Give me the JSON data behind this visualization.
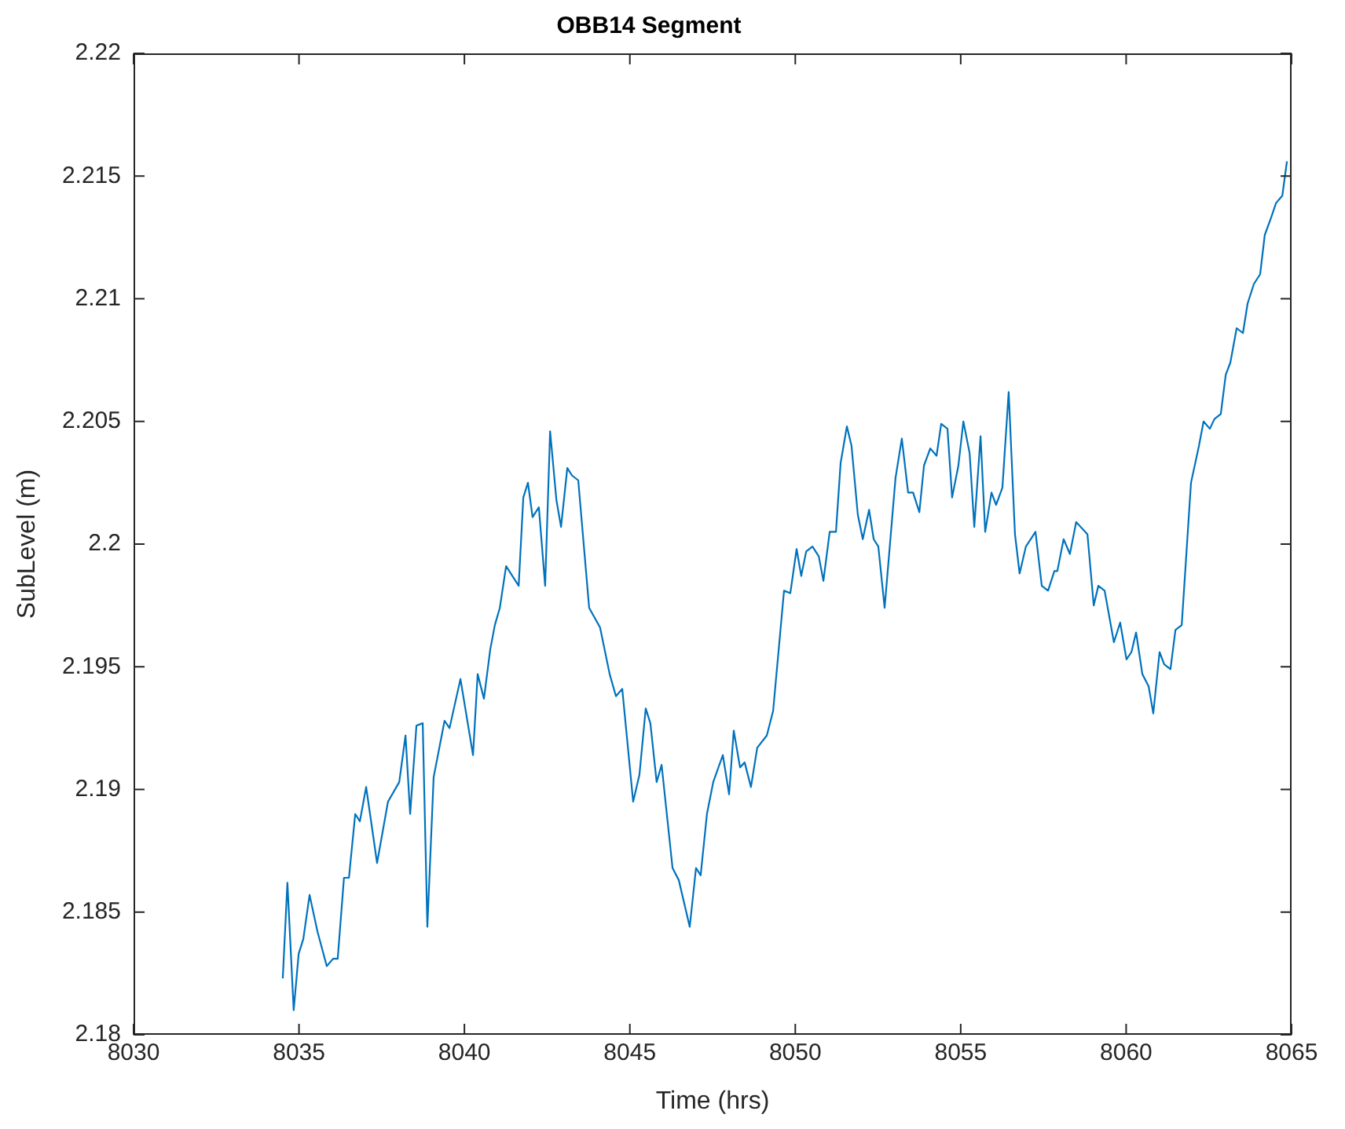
{
  "chart_data": {
    "type": "line",
    "title": "OBB14 Segment",
    "xlabel": "Time (hrs)",
    "ylabel": "SubLevel (m)",
    "legend": false,
    "grid": false,
    "marker": "none",
    "line_style": "solid",
    "xlim": [
      8030,
      8065
    ],
    "xticks": [
      8030,
      8035,
      8040,
      8045,
      8050,
      8055,
      8060,
      8065
    ],
    "ylim": [
      2.18,
      2.22
    ],
    "yticks": [
      2.18,
      2.185,
      2.19,
      2.195,
      2.2,
      2.205,
      2.21,
      2.215,
      2.22
    ],
    "series": [
      {
        "color": "#0072bd",
        "x": [
          8034.51,
          8034.65,
          8034.84,
          8034.99,
          8035.13,
          8035.32,
          8035.56,
          8035.84,
          8036.03,
          8036.17,
          8036.36,
          8036.51,
          8036.7,
          8036.84,
          8037.03,
          8037.36,
          8037.69,
          8038.03,
          8038.22,
          8038.36,
          8038.55,
          8038.74,
          8038.88,
          8039.07,
          8039.4,
          8039.55,
          8039.88,
          8040.26,
          8040.4,
          8040.59,
          8040.78,
          8040.92,
          8041.07,
          8041.26,
          8041.64,
          8041.78,
          8041.92,
          8042.06,
          8042.25,
          8042.44,
          8042.59,
          8042.78,
          8042.92,
          8043.11,
          8043.25,
          8043.44,
          8043.77,
          8044.1,
          8044.39,
          8044.58,
          8044.77,
          8045.1,
          8045.29,
          8045.48,
          8045.62,
          8045.81,
          8045.96,
          8046.29,
          8046.48,
          8046.81,
          8047.0,
          8047.14,
          8047.33,
          8047.52,
          8047.81,
          8048.0,
          8048.14,
          8048.33,
          8048.47,
          8048.66,
          8048.85,
          8049.14,
          8049.33,
          8049.66,
          8049.85,
          8050.04,
          8050.18,
          8050.33,
          8050.52,
          8050.71,
          8050.85,
          8051.04,
          8051.23,
          8051.37,
          8051.56,
          8051.7,
          8051.89,
          8052.04,
          8052.23,
          8052.37,
          8052.51,
          8052.7,
          8053.03,
          8053.22,
          8053.41,
          8053.56,
          8053.75,
          8053.89,
          8054.08,
          8054.27,
          8054.41,
          8054.6,
          8054.74,
          8054.93,
          8055.08,
          8055.27,
          8055.41,
          8055.6,
          8055.74,
          8055.93,
          8056.07,
          8056.26,
          8056.45,
          8056.64,
          8056.78,
          8056.97,
          8057.26,
          8057.45,
          8057.64,
          8057.83,
          8057.92,
          8058.11,
          8058.3,
          8058.49,
          8058.83,
          8059.02,
          8059.16,
          8059.35,
          8059.63,
          8059.82,
          8060.01,
          8060.16,
          8060.3,
          8060.49,
          8060.68,
          8060.82,
          8061.01,
          8061.15,
          8061.34,
          8061.49,
          8061.68,
          8061.96,
          8062.2,
          8062.34,
          8062.53,
          8062.67,
          8062.86,
          8063.01,
          8063.15,
          8063.34,
          8063.53,
          8063.67,
          8063.86,
          8064.05,
          8064.19,
          8064.38,
          8064.53,
          8064.72,
          8064.86
        ],
        "values": [
          2.1823,
          2.1862,
          2.181,
          2.1833,
          2.1839,
          2.1857,
          2.1842,
          2.1828,
          2.1831,
          2.1831,
          2.1864,
          2.1864,
          2.189,
          2.1887,
          2.1901,
          2.187,
          2.1895,
          2.1903,
          2.1922,
          2.189,
          2.1926,
          2.1927,
          2.1844,
          2.1905,
          2.1928,
          2.1925,
          2.1945,
          2.1914,
          2.1947,
          2.1937,
          2.1957,
          2.1967,
          2.1974,
          2.1991,
          2.1983,
          2.2019,
          2.2025,
          2.2011,
          2.2015,
          2.1983,
          2.2046,
          2.2018,
          2.2007,
          2.2031,
          2.2028,
          2.2026,
          2.1974,
          2.1966,
          2.1947,
          2.1938,
          2.1941,
          2.1895,
          2.1906,
          2.1933,
          2.1927,
          2.1903,
          2.191,
          2.1868,
          2.1863,
          2.1844,
          2.1868,
          2.1865,
          2.189,
          2.1903,
          2.1914,
          2.1898,
          2.1924,
          2.1909,
          2.1911,
          2.1901,
          2.1917,
          2.1922,
          2.1932,
          2.1981,
          2.198,
          2.1998,
          2.1987,
          2.1997,
          2.1999,
          2.1995,
          2.1985,
          2.2005,
          2.2005,
          2.2033,
          2.2048,
          2.204,
          2.2012,
          2.2002,
          2.2014,
          2.2002,
          2.1999,
          2.1974,
          2.2027,
          2.2043,
          2.2021,
          2.2021,
          2.2013,
          2.2032,
          2.2039,
          2.2036,
          2.2049,
          2.2047,
          2.2019,
          2.2032,
          2.205,
          2.2037,
          2.2007,
          2.2044,
          2.2005,
          2.2021,
          2.2016,
          2.2023,
          2.2062,
          2.2004,
          2.1988,
          2.1999,
          2.2005,
          2.1983,
          2.1981,
          2.1989,
          2.1989,
          2.2002,
          2.1996,
          2.2009,
          2.2004,
          2.1975,
          2.1983,
          2.1981,
          2.196,
          2.1968,
          2.1953,
          2.1956,
          2.1964,
          2.1947,
          2.1942,
          2.1931,
          2.1956,
          2.1951,
          2.1949,
          2.1965,
          2.1967,
          2.2025,
          2.204,
          2.205,
          2.2047,
          2.2051,
          2.2053,
          2.2069,
          2.2074,
          2.2088,
          2.2086,
          2.2098,
          2.2106,
          2.211,
          2.2126,
          2.2133,
          2.2139,
          2.2142,
          2.2156
        ]
      }
    ]
  }
}
